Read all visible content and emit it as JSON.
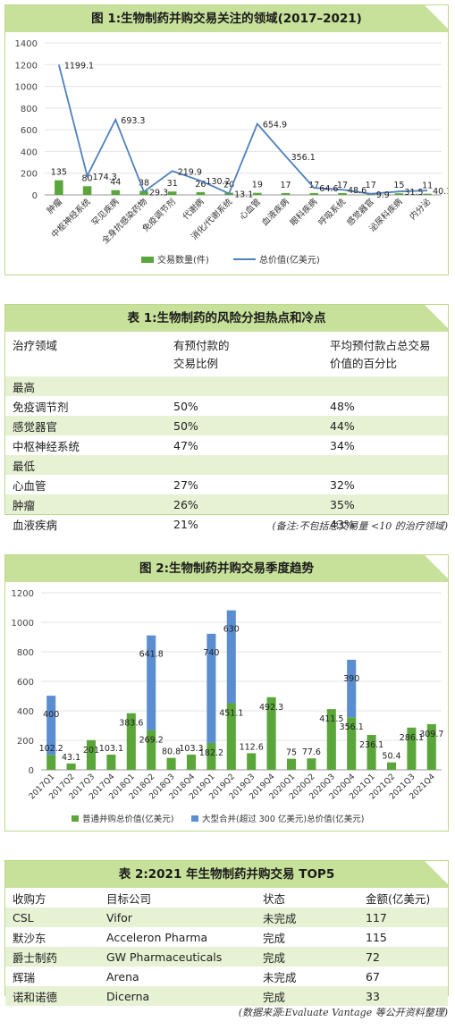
{
  "figure1": {
    "title": "图 1:生物制药并购交易关注的领域(2017–2021)",
    "chart_data": {
      "type": "bar",
      "categories": [
        "肿瘤",
        "中枢神经系统",
        "罕见疾病",
        "全身抗感染药物",
        "免疫调节剂",
        "代谢病",
        "消化/代谢系统",
        "心血管",
        "血液疾病",
        "眼科疾病",
        "呼吸系统",
        "感觉器官",
        "泌尿科疾病",
        "内分泌"
      ],
      "ylim": [
        0,
        1400
      ],
      "yticks": [
        0,
        200,
        400,
        600,
        800,
        1000,
        1200,
        1400
      ],
      "series": [
        {
          "name": "交易数量(件)",
          "type": "bar",
          "color": "#5aa63a",
          "values": [
            135,
            80,
            44,
            38,
            31,
            26,
            20,
            19,
            17,
            17,
            17,
            17,
            15,
            11
          ]
        },
        {
          "name": "总价值(亿美元)",
          "type": "line",
          "color": "#4f81bd",
          "values": [
            1199.1,
            174.3,
            693.3,
            29.3,
            219.9,
            130.2,
            13.1,
            654.9,
            356.1,
            64.6,
            48.6,
            9.9,
            31.5,
            40.1
          ]
        }
      ],
      "bar_labels": [
        "135",
        "80",
        "44",
        "38",
        "31",
        "26",
        "20",
        "19",
        "17",
        "17",
        "17",
        "17",
        "15",
        "11"
      ],
      "line_labels": [
        "1199.1",
        "174.3",
        "693.3",
        "29.3",
        "219.9",
        "130.2",
        "13.1",
        "654.9",
        "356.1",
        "64.6",
        "48.6",
        "9.9",
        "31.5",
        "40.1"
      ],
      "legend": "bottom"
    }
  },
  "table1": {
    "title": "表 1:生物制药的风险分担热点和冷点",
    "headers": [
      "治疗领域",
      "有预付款的交易比例",
      "平均预付款占总交易价值的百分比"
    ],
    "header_lines": [
      [
        "治疗领域"
      ],
      [
        "有预付款的",
        "交易比例"
      ],
      [
        "平均预付款占总交易",
        "价值的百分比"
      ]
    ],
    "groups": [
      {
        "label": "最高",
        "rows": [
          [
            "免疫调节剂",
            "50%",
            "48%"
          ],
          [
            "感觉器官",
            "50%",
            "44%"
          ],
          [
            "中枢神经系统",
            "47%",
            "34%"
          ]
        ]
      },
      {
        "label": "最低",
        "rows": [
          [
            "心血管",
            "27%",
            "32%"
          ],
          [
            "肿瘤",
            "26%",
            "35%"
          ],
          [
            "血液疾病",
            "21%",
            "43%"
          ]
        ]
      }
    ],
    "note": "(备注:不包括总交易量 <10 的治疗领域)"
  },
  "figure2": {
    "title": "图 2:生物制药并购交易季度趋势",
    "chart_data": {
      "type": "bar",
      "stacked": true,
      "categories": [
        "2017Q1",
        "2017Q2",
        "2017Q3",
        "2017Q4",
        "2018Q1",
        "2018Q2",
        "2018Q3",
        "2018Q4",
        "2019Q1",
        "2019Q2",
        "2019Q3",
        "2019Q4",
        "2020Q1",
        "2020Q2",
        "2020Q3",
        "2020Q4",
        "2021Q1",
        "2021Q2",
        "2021Q3",
        "2021Q4"
      ],
      "ylim": [
        0,
        1200
      ],
      "yticks": [
        0,
        200,
        400,
        600,
        800,
        1000,
        1200
      ],
      "series": [
        {
          "name": "普通并购总价值(亿美元)",
          "color": "#5aa63a",
          "values": [
            102.2,
            43.1,
            201,
            103.1,
            383.6,
            269.2,
            80.8,
            103.3,
            182.2,
            451.1,
            112.6,
            492.3,
            75,
            77.6,
            411.5,
            356.1,
            236.1,
            50.4,
            286.1,
            309.7
          ]
        },
        {
          "name": "大型合并(超过 300 亿美元)总价值(亿美元)",
          "color": "#5b8ed1",
          "values": [
            400,
            0,
            0,
            0,
            0,
            641.8,
            0,
            0,
            740,
            630,
            0,
            0,
            0,
            0,
            0,
            390,
            0,
            0,
            0,
            0
          ]
        }
      ],
      "green_labels": [
        "102.2",
        "43.1",
        "201",
        "103.1",
        "383.6",
        "269.2",
        "80.8",
        "103.3",
        "182.2",
        "451.1",
        "112.6",
        "492.3",
        "75",
        "77.6",
        "411.5",
        "356.1",
        "236.1",
        "50.4",
        "286.1",
        "309.7"
      ],
      "blue_labels": [
        "400",
        "",
        "",
        "",
        "",
        "641.8",
        "",
        "",
        "740",
        "630",
        "",
        "",
        "",
        "",
        "",
        "390",
        "",
        "",
        "",
        ""
      ],
      "legend": "bottom"
    }
  },
  "table2": {
    "title": "表 2:2021 年生物制药并购交易 TOP5",
    "headers": [
      "收购方",
      "目标公司",
      "状态",
      "金额(亿美元)"
    ],
    "rows": [
      [
        "CSL",
        "Vifor",
        "未完成",
        "117"
      ],
      [
        "默沙东",
        "Acceleron Pharma",
        "完成",
        "115"
      ],
      [
        "爵士制药",
        "GW Pharmaceuticals",
        "完成",
        "72"
      ],
      [
        "辉瑞",
        "Arena",
        "未完成",
        "67"
      ],
      [
        "诺和诺德",
        "Dicerna",
        "完成",
        "33"
      ]
    ],
    "source": "(数据来源:Evaluate Vantage 等公开资料整理)"
  }
}
